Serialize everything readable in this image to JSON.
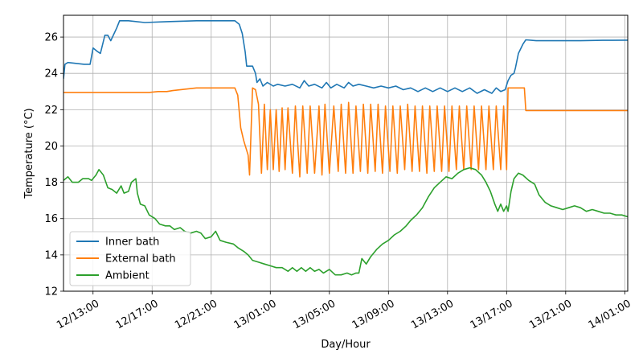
{
  "chart_data": {
    "type": "line",
    "xlabel": "Day/Hour",
    "ylabel": "Temperature ($^\\circ$C)",
    "ylabel_display": "Temperature (°C)",
    "xlim": [
      11.0,
      49.2
    ],
    "ylim": [
      12,
      27.2
    ],
    "x_unit": "hours since 12/00:00",
    "x_ticks": [
      {
        "value": 13,
        "label": "12/13:00"
      },
      {
        "value": 17,
        "label": "12/17:00"
      },
      {
        "value": 21,
        "label": "12/21:00"
      },
      {
        "value": 25,
        "label": "13/01:00"
      },
      {
        "value": 29,
        "label": "13/05:00"
      },
      {
        "value": 33,
        "label": "13/09:00"
      },
      {
        "value": 37,
        "label": "13/13:00"
      },
      {
        "value": 41,
        "label": "13/17:00"
      },
      {
        "value": 45,
        "label": "13/21:00"
      },
      {
        "value": 49,
        "label": "14/01:00"
      }
    ],
    "y_ticks": [
      12,
      14,
      16,
      18,
      20,
      22,
      24,
      26
    ],
    "grid": true,
    "legend_position": "lower-left",
    "series": [
      {
        "name": "Inner bath",
        "color": "#1f77b4",
        "points": [
          [
            11.0,
            23.7
          ],
          [
            11.1,
            24.5
          ],
          [
            11.3,
            24.6
          ],
          [
            12.4,
            24.5
          ],
          [
            12.8,
            24.5
          ],
          [
            13.0,
            25.4
          ],
          [
            13.3,
            25.2
          ],
          [
            13.5,
            25.1
          ],
          [
            13.8,
            26.1
          ],
          [
            14.0,
            26.1
          ],
          [
            14.2,
            25.8
          ],
          [
            14.6,
            26.5
          ],
          [
            14.8,
            26.9
          ],
          [
            15.4,
            26.9
          ],
          [
            16.5,
            26.8
          ],
          [
            18.0,
            26.85
          ],
          [
            20.0,
            26.9
          ],
          [
            21.5,
            26.9
          ],
          [
            22.6,
            26.9
          ],
          [
            22.9,
            26.7
          ],
          [
            23.1,
            26.2
          ],
          [
            23.3,
            25.2
          ],
          [
            23.4,
            24.4
          ],
          [
            23.6,
            24.4
          ],
          [
            23.8,
            24.4
          ],
          [
            24.0,
            24.0
          ],
          [
            24.1,
            23.5
          ],
          [
            24.3,
            23.7
          ],
          [
            24.5,
            23.3
          ],
          [
            24.8,
            23.5
          ],
          [
            25.2,
            23.3
          ],
          [
            25.5,
            23.4
          ],
          [
            26.0,
            23.3
          ],
          [
            26.5,
            23.4
          ],
          [
            27.0,
            23.2
          ],
          [
            27.3,
            23.6
          ],
          [
            27.6,
            23.3
          ],
          [
            28.0,
            23.4
          ],
          [
            28.5,
            23.2
          ],
          [
            28.8,
            23.5
          ],
          [
            29.1,
            23.2
          ],
          [
            29.5,
            23.4
          ],
          [
            30.0,
            23.2
          ],
          [
            30.3,
            23.5
          ],
          [
            30.6,
            23.3
          ],
          [
            31.0,
            23.4
          ],
          [
            31.5,
            23.3
          ],
          [
            32.0,
            23.2
          ],
          [
            32.5,
            23.3
          ],
          [
            33.0,
            23.2
          ],
          [
            33.5,
            23.3
          ],
          [
            34.0,
            23.1
          ],
          [
            34.5,
            23.2
          ],
          [
            35.0,
            23.0
          ],
          [
            35.5,
            23.2
          ],
          [
            36.0,
            23.0
          ],
          [
            36.5,
            23.2
          ],
          [
            37.0,
            23.0
          ],
          [
            37.5,
            23.2
          ],
          [
            38.0,
            23.0
          ],
          [
            38.5,
            23.2
          ],
          [
            39.0,
            22.9
          ],
          [
            39.5,
            23.1
          ],
          [
            40.0,
            22.9
          ],
          [
            40.3,
            23.2
          ],
          [
            40.6,
            23.0
          ],
          [
            40.9,
            23.1
          ],
          [
            41.1,
            23.6
          ],
          [
            41.3,
            23.9
          ],
          [
            41.5,
            24.0
          ],
          [
            41.6,
            24.3
          ],
          [
            41.8,
            25.1
          ],
          [
            42.1,
            25.6
          ],
          [
            42.3,
            25.85
          ],
          [
            43.0,
            25.8
          ],
          [
            44.5,
            25.8
          ],
          [
            46.0,
            25.8
          ],
          [
            47.5,
            25.82
          ],
          [
            49.2,
            25.83
          ]
        ]
      },
      {
        "name": "External bath",
        "color": "#ff7f0e",
        "points": [
          [
            11.0,
            22.95
          ],
          [
            13.0,
            22.95
          ],
          [
            15.0,
            22.95
          ],
          [
            16.8,
            22.95
          ],
          [
            17.4,
            23.0
          ],
          [
            18.0,
            23.0
          ],
          [
            18.4,
            23.05
          ],
          [
            20.0,
            23.2
          ],
          [
            21.5,
            23.2
          ],
          [
            22.6,
            23.2
          ],
          [
            22.8,
            22.8
          ],
          [
            23.0,
            21.0
          ],
          [
            23.2,
            20.3
          ],
          [
            23.5,
            19.5
          ],
          [
            23.6,
            18.4
          ],
          [
            23.8,
            23.2
          ],
          [
            24.0,
            23.1
          ],
          [
            24.2,
            22.3
          ],
          [
            24.4,
            18.5
          ],
          [
            24.6,
            22.3
          ],
          [
            24.8,
            18.7
          ],
          [
            25.0,
            22.0
          ],
          [
            25.2,
            18.7
          ],
          [
            25.4,
            22.0
          ],
          [
            25.6,
            18.6
          ],
          [
            25.8,
            22.1
          ],
          [
            26.0,
            18.7
          ],
          [
            26.2,
            22.1
          ],
          [
            26.5,
            18.5
          ],
          [
            26.7,
            22.2
          ],
          [
            27.0,
            18.3
          ],
          [
            27.2,
            22.2
          ],
          [
            27.5,
            18.5
          ],
          [
            27.7,
            22.2
          ],
          [
            28.0,
            18.5
          ],
          [
            28.3,
            22.2
          ],
          [
            28.5,
            18.4
          ],
          [
            28.7,
            22.3
          ],
          [
            29.0,
            18.5
          ],
          [
            29.3,
            22.2
          ],
          [
            29.6,
            18.6
          ],
          [
            29.8,
            22.3
          ],
          [
            30.1,
            18.5
          ],
          [
            30.3,
            22.4
          ],
          [
            30.6,
            18.5
          ],
          [
            30.8,
            22.2
          ],
          [
            31.1,
            18.6
          ],
          [
            31.3,
            22.3
          ],
          [
            31.6,
            18.5
          ],
          [
            31.8,
            22.3
          ],
          [
            32.1,
            18.6
          ],
          [
            32.3,
            22.3
          ],
          [
            32.6,
            18.5
          ],
          [
            32.8,
            22.2
          ],
          [
            33.1,
            18.6
          ],
          [
            33.3,
            22.2
          ],
          [
            33.6,
            18.5
          ],
          [
            33.8,
            22.2
          ],
          [
            34.1,
            18.7
          ],
          [
            34.3,
            22.3
          ],
          [
            34.6,
            18.6
          ],
          [
            34.8,
            22.2
          ],
          [
            35.1,
            18.6
          ],
          [
            35.3,
            22.2
          ],
          [
            35.6,
            18.5
          ],
          [
            35.8,
            22.2
          ],
          [
            36.1,
            18.6
          ],
          [
            36.3,
            22.2
          ],
          [
            36.6,
            18.6
          ],
          [
            36.8,
            22.2
          ],
          [
            37.1,
            18.6
          ],
          [
            37.3,
            22.2
          ],
          [
            37.6,
            18.7
          ],
          [
            37.8,
            22.2
          ],
          [
            38.1,
            18.7
          ],
          [
            38.3,
            22.2
          ],
          [
            38.6,
            18.7
          ],
          [
            38.8,
            22.2
          ],
          [
            39.1,
            18.7
          ],
          [
            39.3,
            22.2
          ],
          [
            39.6,
            18.7
          ],
          [
            39.8,
            22.2
          ],
          [
            40.1,
            18.7
          ],
          [
            40.3,
            22.2
          ],
          [
            40.6,
            18.7
          ],
          [
            40.8,
            22.2
          ],
          [
            41.0,
            18.7
          ],
          [
            41.1,
            23.2
          ],
          [
            41.5,
            23.2
          ],
          [
            42.0,
            23.2
          ],
          [
            42.2,
            23.2
          ],
          [
            42.3,
            21.95
          ],
          [
            43.5,
            21.95
          ],
          [
            45.0,
            21.95
          ],
          [
            46.5,
            21.95
          ],
          [
            48.0,
            21.95
          ],
          [
            49.2,
            21.95
          ]
        ]
      },
      {
        "name": "Ambient",
        "color": "#2ca02c",
        "points": [
          [
            11.0,
            18.1
          ],
          [
            11.3,
            18.3
          ],
          [
            11.6,
            18.0
          ],
          [
            12.0,
            18.0
          ],
          [
            12.3,
            18.2
          ],
          [
            12.7,
            18.2
          ],
          [
            12.9,
            18.1
          ],
          [
            13.2,
            18.4
          ],
          [
            13.4,
            18.7
          ],
          [
            13.7,
            18.4
          ],
          [
            14.0,
            17.7
          ],
          [
            14.3,
            17.6
          ],
          [
            14.6,
            17.4
          ],
          [
            14.9,
            17.8
          ],
          [
            15.1,
            17.4
          ],
          [
            15.4,
            17.5
          ],
          [
            15.6,
            18.0
          ],
          [
            15.9,
            18.2
          ],
          [
            16.0,
            17.4
          ],
          [
            16.2,
            16.8
          ],
          [
            16.5,
            16.7
          ],
          [
            16.8,
            16.2
          ],
          [
            17.2,
            16.0
          ],
          [
            17.5,
            15.7
          ],
          [
            17.9,
            15.6
          ],
          [
            18.2,
            15.6
          ],
          [
            18.5,
            15.4
          ],
          [
            18.9,
            15.5
          ],
          [
            19.2,
            15.3
          ],
          [
            19.6,
            15.2
          ],
          [
            20.0,
            15.3
          ],
          [
            20.3,
            15.2
          ],
          [
            20.6,
            14.9
          ],
          [
            21.0,
            15.0
          ],
          [
            21.3,
            15.3
          ],
          [
            21.6,
            14.8
          ],
          [
            22.0,
            14.7
          ],
          [
            22.5,
            14.6
          ],
          [
            22.8,
            14.4
          ],
          [
            23.2,
            14.2
          ],
          [
            23.5,
            14.0
          ],
          [
            23.8,
            13.7
          ],
          [
            24.2,
            13.6
          ],
          [
            24.6,
            13.5
          ],
          [
            25.0,
            13.4
          ],
          [
            25.4,
            13.3
          ],
          [
            25.8,
            13.3
          ],
          [
            26.2,
            13.1
          ],
          [
            26.5,
            13.3
          ],
          [
            26.8,
            13.1
          ],
          [
            27.1,
            13.3
          ],
          [
            27.4,
            13.1
          ],
          [
            27.7,
            13.3
          ],
          [
            28.0,
            13.1
          ],
          [
            28.3,
            13.2
          ],
          [
            28.6,
            13.0
          ],
          [
            29.0,
            13.2
          ],
          [
            29.4,
            12.9
          ],
          [
            29.8,
            12.9
          ],
          [
            30.2,
            13.0
          ],
          [
            30.5,
            12.9
          ],
          [
            30.8,
            13.0
          ],
          [
            31.0,
            13.0
          ],
          [
            31.2,
            13.8
          ],
          [
            31.5,
            13.5
          ],
          [
            31.8,
            13.9
          ],
          [
            32.2,
            14.3
          ],
          [
            32.6,
            14.6
          ],
          [
            33.0,
            14.8
          ],
          [
            33.4,
            15.1
          ],
          [
            33.8,
            15.3
          ],
          [
            34.2,
            15.6
          ],
          [
            34.5,
            15.9
          ],
          [
            34.9,
            16.2
          ],
          [
            35.3,
            16.6
          ],
          [
            35.7,
            17.2
          ],
          [
            36.1,
            17.7
          ],
          [
            36.5,
            18.0
          ],
          [
            36.9,
            18.3
          ],
          [
            37.3,
            18.2
          ],
          [
            37.7,
            18.5
          ],
          [
            38.1,
            18.7
          ],
          [
            38.5,
            18.8
          ],
          [
            38.9,
            18.7
          ],
          [
            39.3,
            18.4
          ],
          [
            39.6,
            18.0
          ],
          [
            39.9,
            17.5
          ],
          [
            40.2,
            16.8
          ],
          [
            40.4,
            16.4
          ],
          [
            40.6,
            16.8
          ],
          [
            40.8,
            16.4
          ],
          [
            41.0,
            16.7
          ],
          [
            41.1,
            16.4
          ],
          [
            41.3,
            17.5
          ],
          [
            41.5,
            18.2
          ],
          [
            41.8,
            18.5
          ],
          [
            42.1,
            18.4
          ],
          [
            42.5,
            18.1
          ],
          [
            42.9,
            17.9
          ],
          [
            43.2,
            17.3
          ],
          [
            43.6,
            16.9
          ],
          [
            44.0,
            16.7
          ],
          [
            44.4,
            16.6
          ],
          [
            44.8,
            16.5
          ],
          [
            45.2,
            16.6
          ],
          [
            45.6,
            16.7
          ],
          [
            46.0,
            16.6
          ],
          [
            46.4,
            16.4
          ],
          [
            46.8,
            16.5
          ],
          [
            47.2,
            16.4
          ],
          [
            47.6,
            16.3
          ],
          [
            48.0,
            16.3
          ],
          [
            48.4,
            16.2
          ],
          [
            48.8,
            16.2
          ],
          [
            49.2,
            16.1
          ]
        ]
      }
    ]
  }
}
